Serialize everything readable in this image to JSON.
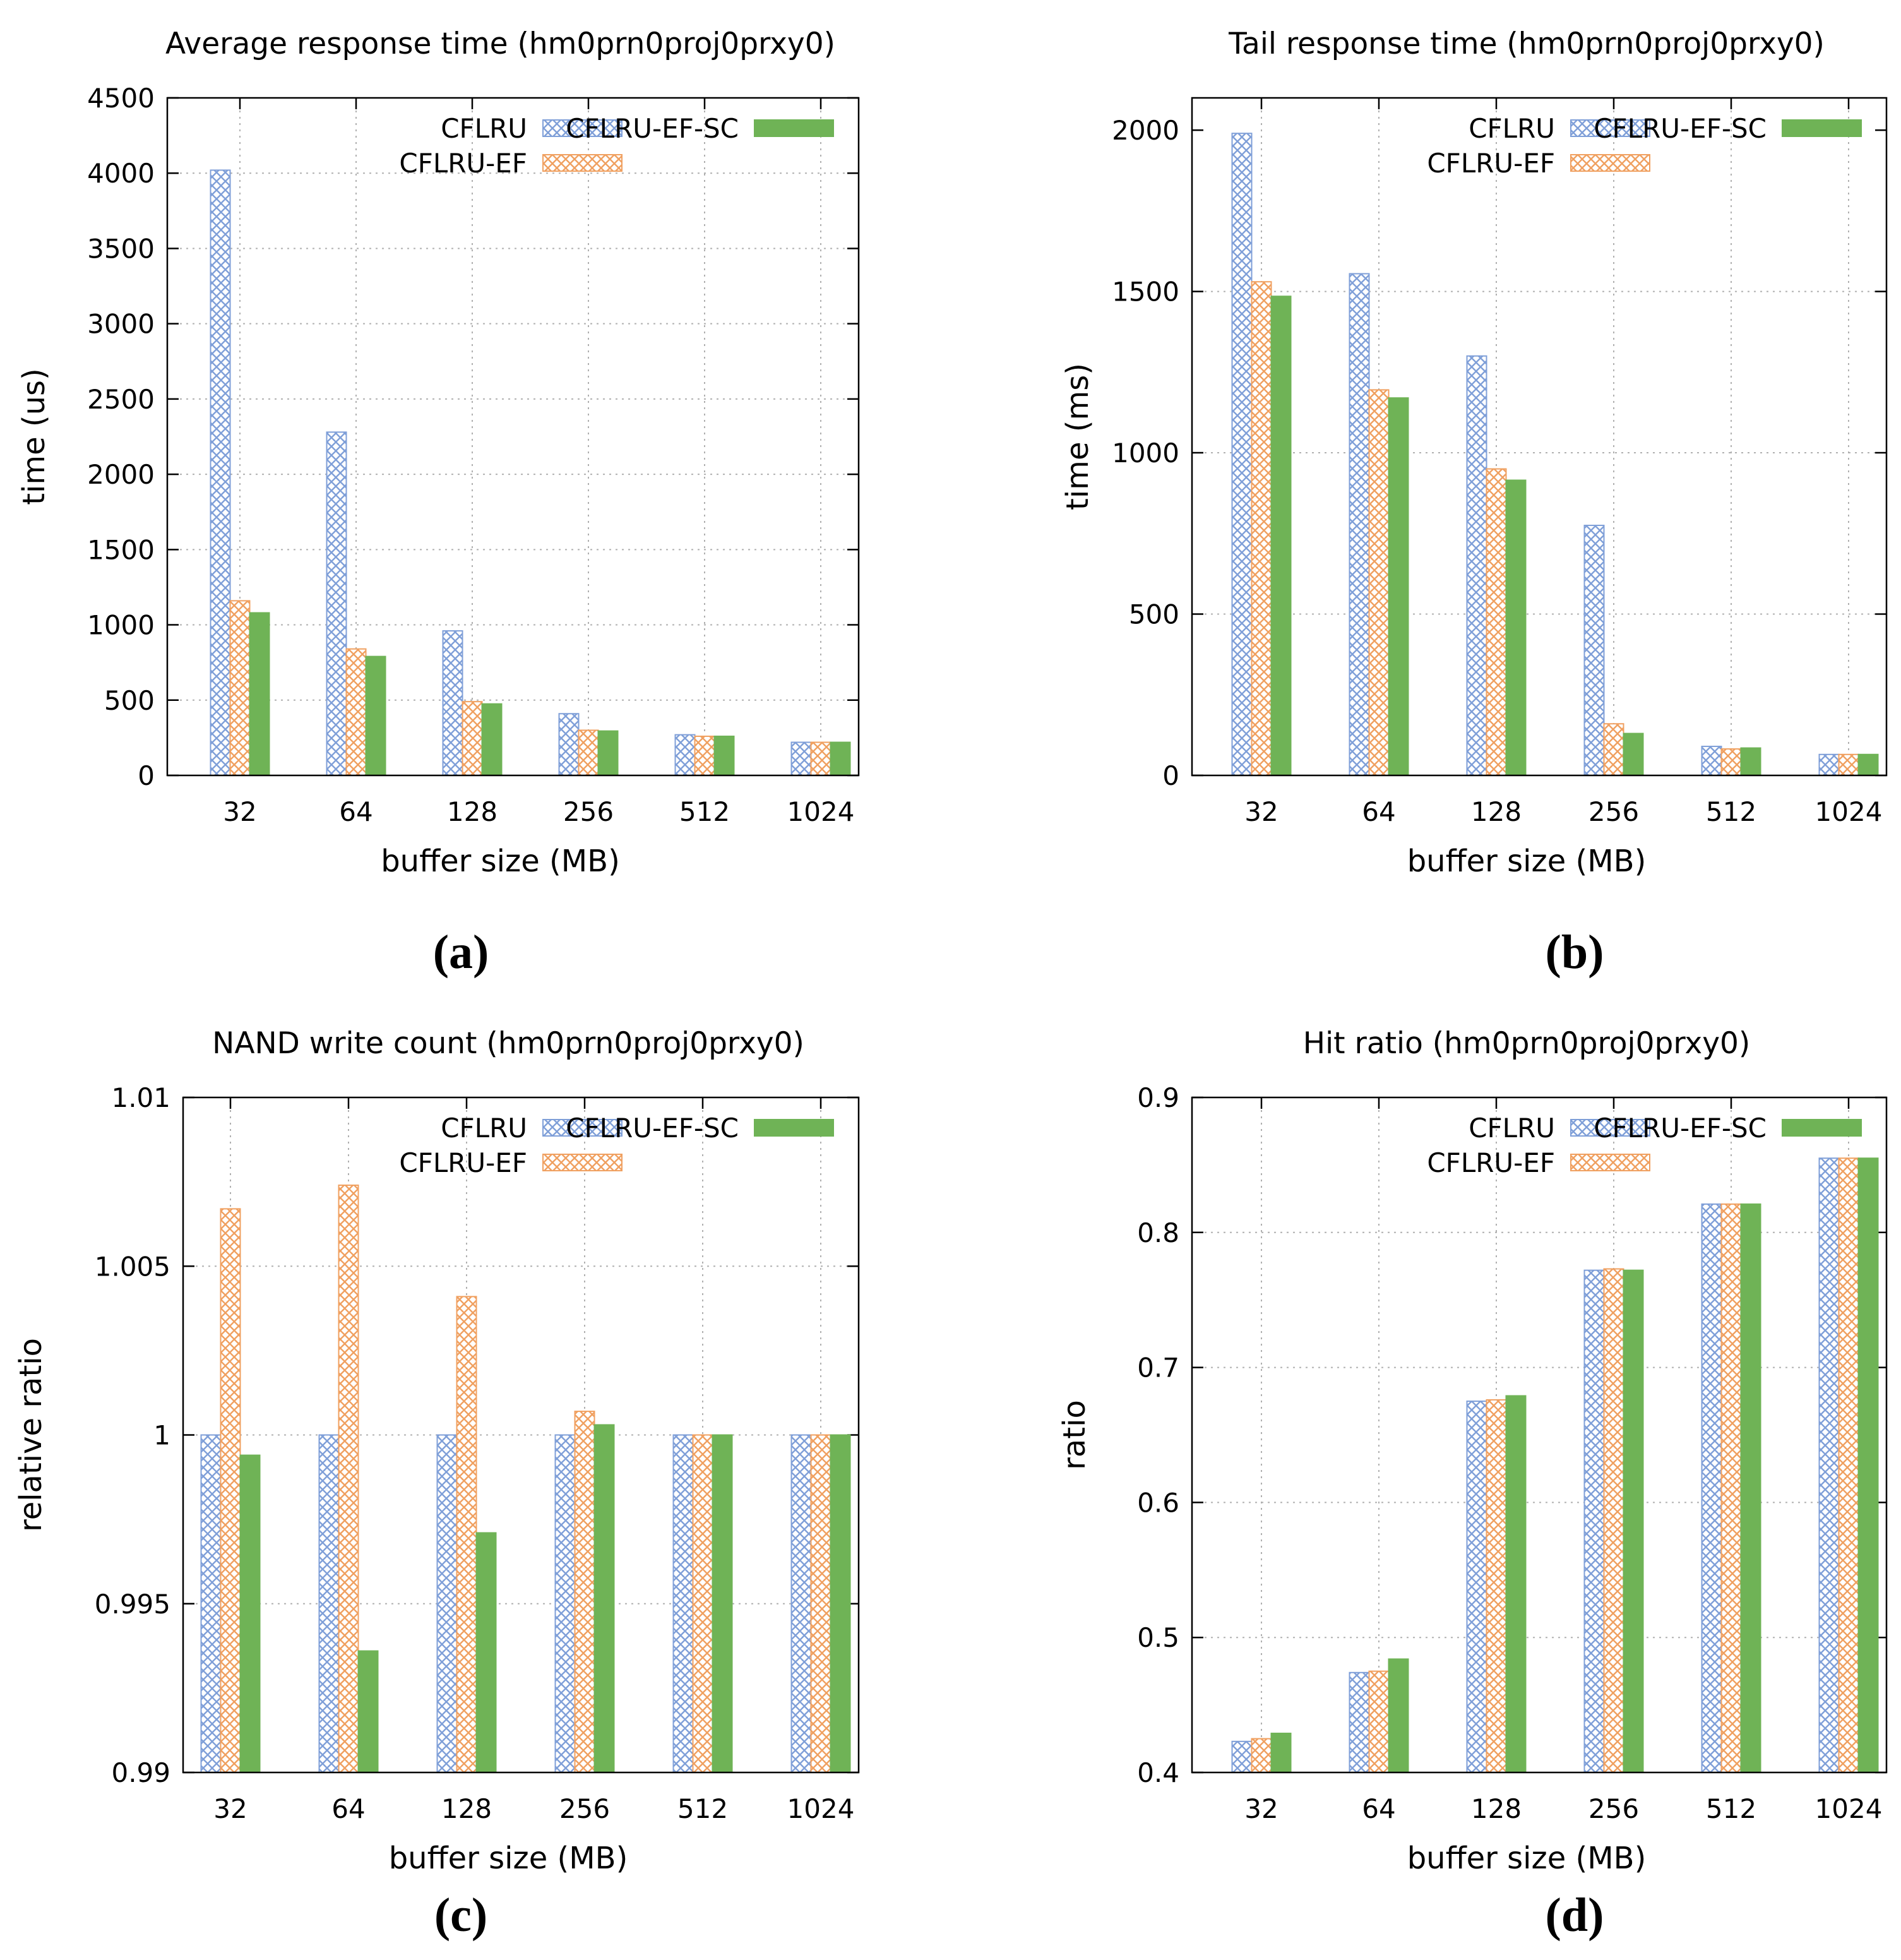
{
  "figure": {
    "legend_labels": [
      "CFLRU",
      "CFLRU-EF",
      "CFLRU-EF-SC"
    ],
    "colors": {
      "cflru": "#7f9fd8",
      "cflru_ef": "#f0a060",
      "cflru_ef_sc": "#6fb356",
      "axis": "#000000",
      "grid": "#b0b0b0"
    },
    "captions": [
      "(a)",
      "(b)",
      "(c)",
      "(d)"
    ]
  },
  "chart_data": [
    {
      "type": "bar",
      "title": "Average response time (hm0prn0proj0prxy0)",
      "xlabel": "buffer size (MB)",
      "ylabel": "time (us)",
      "categories": [
        "32",
        "64",
        "128",
        "256",
        "512",
        "1024"
      ],
      "ylim": [
        0,
        4500
      ],
      "yticks": [
        "0",
        "500",
        "1000",
        "1500",
        "2000",
        "2500",
        "3000",
        "3500",
        "4000",
        "4500"
      ],
      "series": [
        {
          "name": "CFLRU",
          "values": [
            4020,
            2280,
            960,
            410,
            270,
            220
          ]
        },
        {
          "name": "CFLRU-EF",
          "values": [
            1160,
            840,
            490,
            300,
            260,
            220
          ]
        },
        {
          "name": "CFLRU-EF-SC",
          "values": [
            1080,
            790,
            475,
            295,
            260,
            220
          ]
        }
      ],
      "grid": true,
      "legend": "top-right"
    },
    {
      "type": "bar",
      "title": "Tail response time (hm0prn0proj0prxy0)",
      "xlabel": "buffer size (MB)",
      "ylabel": "time (ms)",
      "categories": [
        "32",
        "64",
        "128",
        "256",
        "512",
        "1024"
      ],
      "ylim": [
        0,
        2100
      ],
      "yticks": [
        "0",
        "500",
        "1000",
        "1500",
        "2000"
      ],
      "series": [
        {
          "name": "CFLRU",
          "values": [
            1990,
            1555,
            1300,
            775,
            90,
            65
          ]
        },
        {
          "name": "CFLRU-EF",
          "values": [
            1530,
            1195,
            950,
            160,
            82,
            65
          ]
        },
        {
          "name": "CFLRU-EF-SC",
          "values": [
            1485,
            1170,
            915,
            130,
            85,
            65
          ]
        }
      ],
      "grid": true,
      "legend": "top-right"
    },
    {
      "type": "bar",
      "title": "NAND write count (hm0prn0proj0prxy0)",
      "xlabel": "buffer size (MB)",
      "ylabel": "relative ratio",
      "categories": [
        "32",
        "64",
        "128",
        "256",
        "512",
        "1024"
      ],
      "ylim": [
        0.99,
        1.01
      ],
      "yticks": [
        "0.99",
        "0.995",
        "1",
        "1.005",
        "1.01"
      ],
      "series": [
        {
          "name": "CFLRU",
          "values": [
            1.0,
            1.0,
            1.0,
            1.0,
            1.0,
            1.0
          ]
        },
        {
          "name": "CFLRU-EF",
          "values": [
            1.0067,
            1.0074,
            1.0041,
            1.0007,
            1.0,
            1.0
          ]
        },
        {
          "name": "CFLRU-EF-SC",
          "values": [
            0.9994,
            0.9936,
            0.9971,
            1.0003,
            1.0,
            1.0
          ]
        }
      ],
      "grid": true,
      "legend": "top-right"
    },
    {
      "type": "bar",
      "title": "Hit ratio (hm0prn0proj0prxy0)",
      "xlabel": "buffer size (MB)",
      "ylabel": "ratio",
      "categories": [
        "32",
        "64",
        "128",
        "256",
        "512",
        "1024"
      ],
      "ylim": [
        0.4,
        0.9
      ],
      "yticks": [
        "0.4",
        "0.5",
        "0.6",
        "0.7",
        "0.8",
        "0.9"
      ],
      "series": [
        {
          "name": "CFLRU",
          "values": [
            0.423,
            0.474,
            0.675,
            0.772,
            0.821,
            0.855
          ]
        },
        {
          "name": "CFLRU-EF",
          "values": [
            0.425,
            0.475,
            0.676,
            0.773,
            0.821,
            0.855
          ]
        },
        {
          "name": "CFLRU-EF-SC",
          "values": [
            0.429,
            0.484,
            0.679,
            0.772,
            0.821,
            0.855
          ]
        }
      ],
      "grid": true,
      "legend": "top-right"
    }
  ]
}
